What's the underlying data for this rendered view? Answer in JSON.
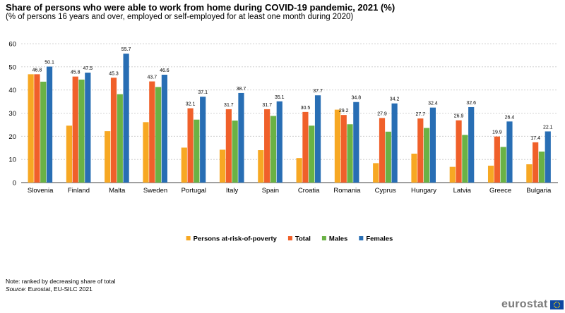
{
  "title": "Share of persons who were able to work from home during COVID-19 pandemic, 2021 (%)",
  "subtitle": "(% of  persons 16 years and over, employed or self-employed for at least one month during 2020)",
  "note": "Note: ranked by decreasing share of total",
  "source_label": "Source:",
  "source_text": " Eurostat, EU-SILC 2021",
  "logo_text": "eurostat",
  "chart_data": {
    "type": "bar",
    "categories": [
      "Slovenia",
      "Finland",
      "Malta",
      "Sweden",
      "Portugal",
      "Italy",
      "Spain",
      "Croatia",
      "Romania",
      "Cyprus",
      "Hungary",
      "Latvia",
      "Greece",
      "Bulgaria"
    ],
    "series": [
      {
        "name": "Persons at-risk-of-poverty",
        "color": "#f7a823",
        "values": [
          46.8,
          24.6,
          22.2,
          26.1,
          15.1,
          14.2,
          14.0,
          10.6,
          31.5,
          8.4,
          12.5,
          6.8,
          7.3,
          7.9
        ]
      },
      {
        "name": "Total",
        "color": "#f0602a",
        "values": [
          46.8,
          45.8,
          45.3,
          43.7,
          32.1,
          31.7,
          31.7,
          30.5,
          29.2,
          27.9,
          27.7,
          26.9,
          19.9,
          17.4
        ]
      },
      {
        "name": "Males",
        "color": "#6ab245",
        "values": [
          43.6,
          44.5,
          38.2,
          41.3,
          27.2,
          26.8,
          28.8,
          24.6,
          25.2,
          22.0,
          23.6,
          20.6,
          15.4,
          13.4
        ]
      },
      {
        "name": "Females",
        "color": "#286eb4",
        "values": [
          50.1,
          47.5,
          55.7,
          46.6,
          37.1,
          38.7,
          35.1,
          37.7,
          34.8,
          34.2,
          32.4,
          32.6,
          26.4,
          22.1
        ]
      }
    ],
    "data_labels": {
      "Total": [
        "46.8",
        "45.8",
        "45.3",
        "43.7",
        "32.1",
        "31.7",
        "31.7",
        "30.5",
        "29.2",
        "27.9",
        "27.7",
        "26.9",
        "19.9",
        "17.4"
      ],
      "Females": [
        "50.1",
        "47.5",
        "55.7",
        "46.6",
        "37.1",
        "38.7",
        "35.1",
        "37.7",
        "34.8",
        "34.2",
        "32.4",
        "32.6",
        "26.4",
        "22.1"
      ]
    },
    "ylim": [
      0,
      60
    ],
    "yticks": [
      "0",
      "10",
      "20",
      "30",
      "40",
      "50",
      "60"
    ],
    "grid": true,
    "legend_position": "bottom-center",
    "xlabel": "",
    "ylabel": ""
  }
}
